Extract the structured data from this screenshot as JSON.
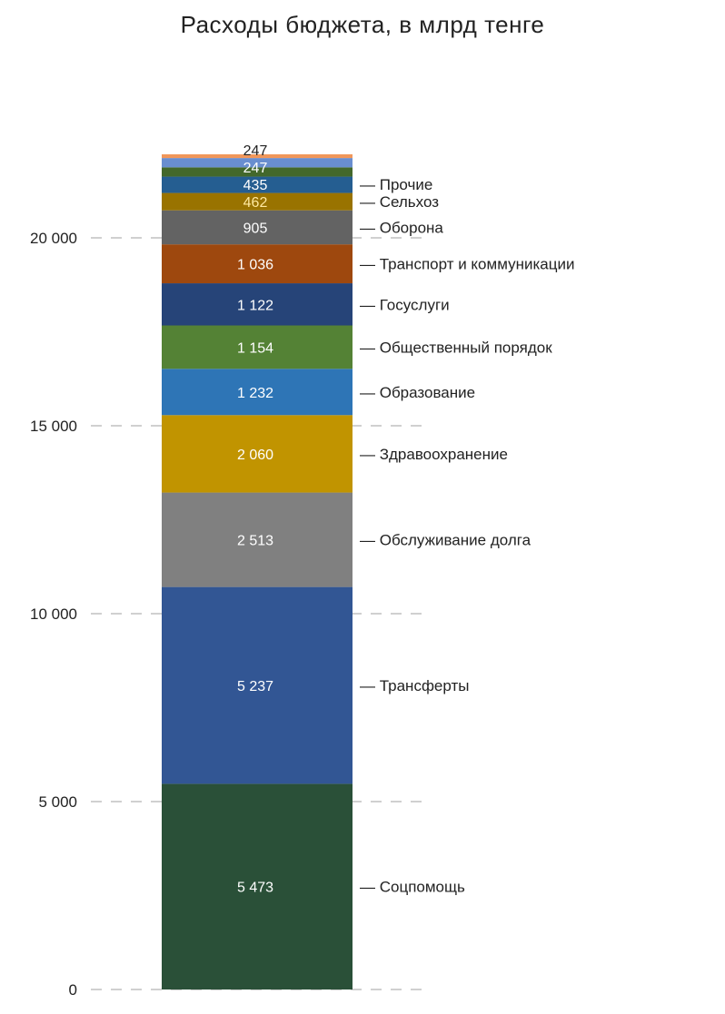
{
  "chart_data": {
    "type": "bar",
    "stacked": true,
    "title": "Расходы бюджета, в млрд тенге",
    "ylim": [
      0,
      22500
    ],
    "yticks": [
      0,
      5000,
      10000,
      15000,
      20000
    ],
    "ytick_labels": [
      "0",
      "5 000",
      "10 000",
      "15 000",
      "20 000"
    ],
    "grid": "dashed horizontal",
    "segments": [
      {
        "name": "Соцпомощь",
        "value": 5473,
        "label": "5 473",
        "color": "#2a5038",
        "text_color": "#ffffff"
      },
      {
        "name": "Трансферты",
        "value": 5237,
        "label": "5 237",
        "color": "#325694",
        "text_color": "#ffffff"
      },
      {
        "name": "Обслуживание долга",
        "value": 2513,
        "label": "2 513",
        "color": "#808080",
        "text_color": "#ffffff"
      },
      {
        "name": "Здравоохранение",
        "value": 2060,
        "label": "2 060",
        "color": "#c19400",
        "text_color": "#ffffff"
      },
      {
        "name": "Образование",
        "value": 1232,
        "label": "1 232",
        "color": "#2e75b6",
        "text_color": "#ffffff"
      },
      {
        "name": "Общественный порядок",
        "value": 1154,
        "label": "1 154",
        "color": "#548235",
        "text_color": "#ffffff"
      },
      {
        "name": "Госуслуги",
        "value": 1122,
        "label": "1 122",
        "color": "#264478",
        "text_color": "#ffffff"
      },
      {
        "name": "Транспорт и коммуникации",
        "value": 1036,
        "label": "1 036",
        "color": "#9e480e",
        "text_color": "#ffffff"
      },
      {
        "name": "Оборона",
        "value": 905,
        "label": "905",
        "color": "#636363",
        "text_color": "#ffffff"
      },
      {
        "name": "Сельхоз",
        "value": 462,
        "label": "462",
        "color": "#997300",
        "text_color": "#ffe9a0"
      },
      {
        "name": "Прочие",
        "value": 435,
        "label": "435",
        "color": "#255e91",
        "text_color": "#ffffff"
      },
      {
        "name": "",
        "value": 247,
        "label": "247",
        "color": "#43682b",
        "text_color": "#ffffff"
      },
      {
        "name": "",
        "value": 247,
        "label": "247",
        "color": "#698ed0",
        "text_color": "#222222"
      },
      {
        "name": "",
        "value": 100,
        "label": "",
        "color": "#f1975a",
        "text_color": "#222222"
      }
    ]
  }
}
